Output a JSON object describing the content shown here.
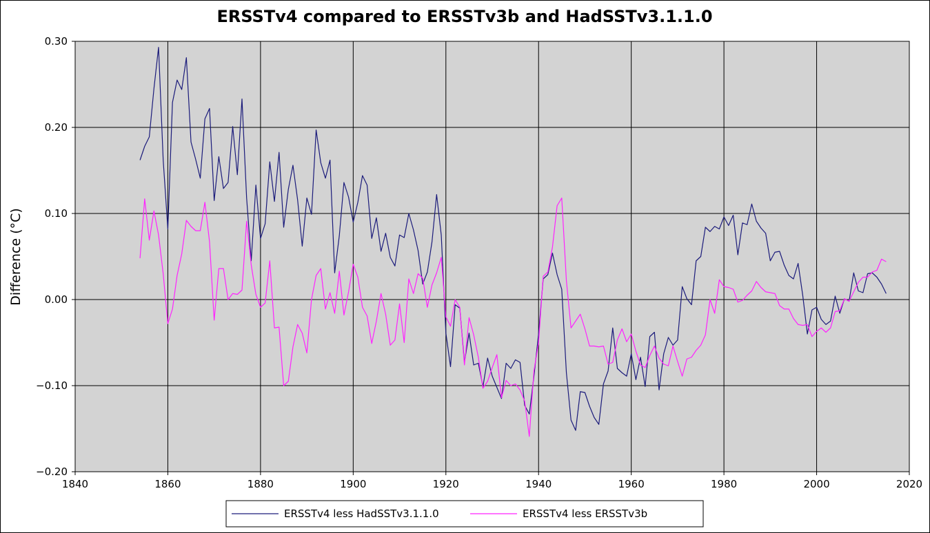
{
  "chart_data": {
    "type": "line",
    "title": "ERSSTv4 compared to ERSSTv3b and HadSSTv3.1.1.0",
    "xlabel": "",
    "ylabel": "Difference (°C)",
    "xlim": [
      1840,
      2020
    ],
    "ylim": [
      -0.2,
      0.3
    ],
    "x_ticks": [
      1840,
      1860,
      1880,
      1900,
      1920,
      1940,
      1960,
      1980,
      2000,
      2020
    ],
    "y_ticks": [
      -0.2,
      -0.1,
      0.0,
      0.1,
      0.2,
      0.3
    ],
    "x_tick_labels": [
      "1840",
      "1860",
      "1880",
      "1900",
      "1920",
      "1940",
      "1960",
      "1980",
      "2000",
      "2020"
    ],
    "y_tick_labels": [
      "−0.20",
      "−0.10",
      "0.00",
      "0.10",
      "0.20",
      "0.30"
    ],
    "grid": true,
    "legend_position": "bottom",
    "x_start": 1854,
    "series": [
      {
        "name": "ERSSTv4 less HadSSTv3.1.1.0",
        "color": "#1a1a7a",
        "values": [
          0.162,
          0.178,
          0.189,
          0.245,
          0.293,
          0.162,
          0.082,
          0.229,
          0.255,
          0.244,
          0.281,
          0.183,
          0.163,
          0.141,
          0.21,
          0.222,
          0.115,
          0.166,
          0.129,
          0.136,
          0.201,
          0.145,
          0.233,
          0.118,
          0.045,
          0.133,
          0.071,
          0.088,
          0.16,
          0.114,
          0.171,
          0.084,
          0.128,
          0.156,
          0.116,
          0.062,
          0.118,
          0.099,
          0.197,
          0.159,
          0.141,
          0.162,
          0.031,
          0.074,
          0.136,
          0.119,
          0.09,
          0.113,
          0.144,
          0.133,
          0.071,
          0.095,
          0.056,
          0.077,
          0.049,
          0.039,
          0.075,
          0.072,
          0.1,
          0.081,
          0.057,
          0.018,
          0.032,
          0.067,
          0.122,
          0.075,
          -0.039,
          -0.078,
          -0.006,
          -0.01,
          -0.073,
          -0.039,
          -0.076,
          -0.074,
          -0.101,
          -0.068,
          -0.089,
          -0.102,
          -0.115,
          -0.074,
          -0.08,
          -0.07,
          -0.073,
          -0.123,
          -0.133,
          -0.089,
          -0.04,
          0.024,
          0.029,
          0.054,
          0.029,
          0.012,
          -0.085,
          -0.14,
          -0.152,
          -0.107,
          -0.108,
          -0.124,
          -0.137,
          -0.145,
          -0.098,
          -0.083,
          -0.033,
          -0.08,
          -0.085,
          -0.089,
          -0.063,
          -0.093,
          -0.067,
          -0.101,
          -0.043,
          -0.038,
          -0.105,
          -0.063,
          -0.044,
          -0.053,
          -0.047,
          0.015,
          0.001,
          -0.006,
          0.045,
          0.05,
          0.084,
          0.079,
          0.085,
          0.082,
          0.096,
          0.086,
          0.098,
          0.052,
          0.089,
          0.087,
          0.111,
          0.091,
          0.083,
          0.077,
          0.045,
          0.055,
          0.056,
          0.04,
          0.028,
          0.024,
          0.042,
          0.005,
          -0.04,
          -0.012,
          -0.009,
          -0.023,
          -0.029,
          -0.025,
          0.004,
          -0.016,
          0.001,
          -0.002,
          0.031,
          0.01,
          0.008,
          0.03,
          0.031,
          0.026,
          0.018,
          0.007
        ]
      },
      {
        "name": "ERSSTv4 less ERSSTv3b",
        "color": "#ff22ff",
        "values": [
          0.048,
          0.117,
          0.069,
          0.103,
          0.075,
          0.03,
          -0.028,
          -0.011,
          0.028,
          0.053,
          0.092,
          0.085,
          0.08,
          0.08,
          0.113,
          0.067,
          -0.024,
          0.036,
          0.036,
          0.0,
          0.007,
          0.006,
          0.011,
          0.091,
          0.04,
          0.006,
          -0.009,
          -0.004,
          0.045,
          -0.033,
          -0.032,
          -0.1,
          -0.095,
          -0.055,
          -0.029,
          -0.039,
          -0.062,
          0.0,
          0.028,
          0.036,
          -0.011,
          0.008,
          -0.016,
          0.033,
          -0.018,
          0.009,
          0.041,
          0.026,
          -0.009,
          -0.019,
          -0.051,
          -0.025,
          0.007,
          -0.017,
          -0.053,
          -0.047,
          -0.005,
          -0.05,
          0.024,
          0.007,
          0.03,
          0.025,
          -0.009,
          0.017,
          0.031,
          0.049,
          -0.02,
          -0.031,
          0.0,
          -0.009,
          -0.076,
          -0.021,
          -0.041,
          -0.067,
          -0.103,
          -0.095,
          -0.079,
          -0.064,
          -0.114,
          -0.094,
          -0.1,
          -0.098,
          -0.105,
          -0.118,
          -0.159,
          -0.083,
          -0.05,
          0.027,
          0.032,
          0.061,
          0.109,
          0.118,
          0.022,
          -0.033,
          -0.025,
          -0.017,
          -0.034,
          -0.054,
          -0.054,
          -0.055,
          -0.054,
          -0.075,
          -0.073,
          -0.047,
          -0.034,
          -0.049,
          -0.04,
          -0.06,
          -0.076,
          -0.079,
          -0.065,
          -0.054,
          -0.068,
          -0.075,
          -0.077,
          -0.054,
          -0.072,
          -0.089,
          -0.069,
          -0.067,
          -0.059,
          -0.053,
          -0.041,
          0.0,
          -0.016,
          0.023,
          0.015,
          0.014,
          0.012,
          -0.003,
          -0.001,
          0.005,
          0.01,
          0.021,
          0.014,
          0.009,
          0.008,
          0.007,
          -0.007,
          -0.011,
          -0.011,
          -0.022,
          -0.029,
          -0.03,
          -0.029,
          -0.043,
          -0.037,
          -0.033,
          -0.038,
          -0.033,
          -0.014,
          -0.013,
          0.001,
          -0.002,
          0.009,
          0.02,
          0.026,
          0.026,
          0.032,
          0.034,
          0.047,
          0.044
        ]
      }
    ]
  }
}
